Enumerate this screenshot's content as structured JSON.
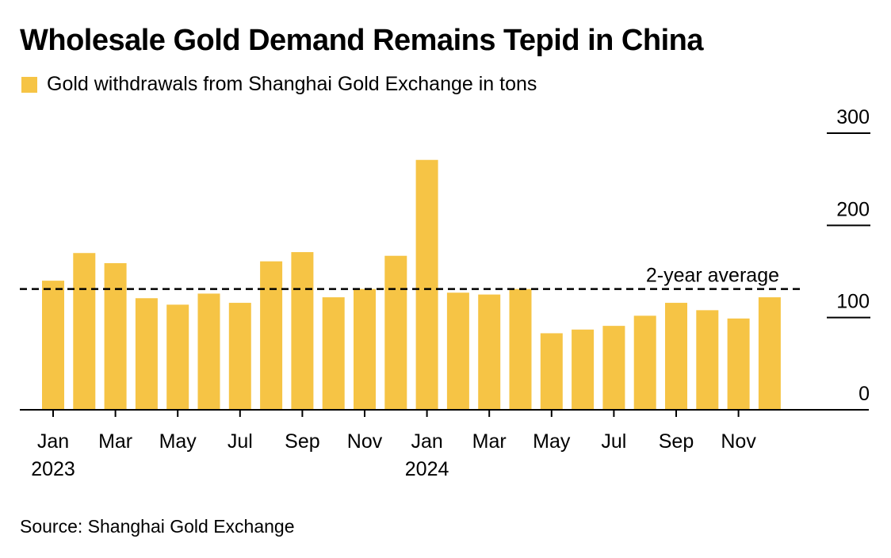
{
  "title": "Wholesale Gold Demand Remains Tepid in China",
  "legend_label": "Gold withdrawals from Shanghai Gold Exchange in tons",
  "source": "Source: Shanghai Gold Exchange",
  "colors": {
    "bar": "#f6c445",
    "axis": "#000000",
    "reference_line": "#000000"
  },
  "chart_data": {
    "type": "bar",
    "title": "Wholesale Gold Demand Remains Tepid in China",
    "series": [
      {
        "name": "Gold withdrawals from Shanghai Gold Exchange in tons",
        "values": [
          140,
          170,
          159,
          121,
          114,
          126,
          116,
          161,
          171,
          122,
          131,
          167,
          271,
          127,
          125,
          131,
          83,
          87,
          91,
          102,
          116,
          108,
          99,
          122
        ]
      }
    ],
    "categories": [
      "Jan 2023",
      "Feb 2023",
      "Mar 2023",
      "Apr 2023",
      "May 2023",
      "Jun 2023",
      "Jul 2023",
      "Aug 2023",
      "Sep 2023",
      "Oct 2023",
      "Nov 2023",
      "Dec 2023",
      "Jan 2024",
      "Feb 2024",
      "Mar 2024",
      "Apr 2024",
      "May 2024",
      "Jun 2024",
      "Jul 2024",
      "Aug 2024",
      "Sep 2024",
      "Oct 2024",
      "Nov 2024",
      "Dec 2024"
    ],
    "x_tick_labels": [
      {
        "index": 0,
        "month": "Jan",
        "year": "2023"
      },
      {
        "index": 2,
        "month": "Mar",
        "year": ""
      },
      {
        "index": 4,
        "month": "May",
        "year": ""
      },
      {
        "index": 6,
        "month": "Jul",
        "year": ""
      },
      {
        "index": 8,
        "month": "Sep",
        "year": ""
      },
      {
        "index": 10,
        "month": "Nov",
        "year": ""
      },
      {
        "index": 12,
        "month": "Jan",
        "year": "2024"
      },
      {
        "index": 14,
        "month": "Mar",
        "year": ""
      },
      {
        "index": 16,
        "month": "May",
        "year": ""
      },
      {
        "index": 18,
        "month": "Jul",
        "year": ""
      },
      {
        "index": 20,
        "month": "Sep",
        "year": ""
      },
      {
        "index": 22,
        "month": "Nov",
        "year": ""
      }
    ],
    "y_ticks": [
      0,
      100,
      200,
      300
    ],
    "ylim": [
      0,
      300
    ],
    "reference_line": {
      "label": "2-year average",
      "value": 131
    },
    "xlabel": "",
    "ylabel": "",
    "grid": false,
    "legend_position": "top-left"
  }
}
